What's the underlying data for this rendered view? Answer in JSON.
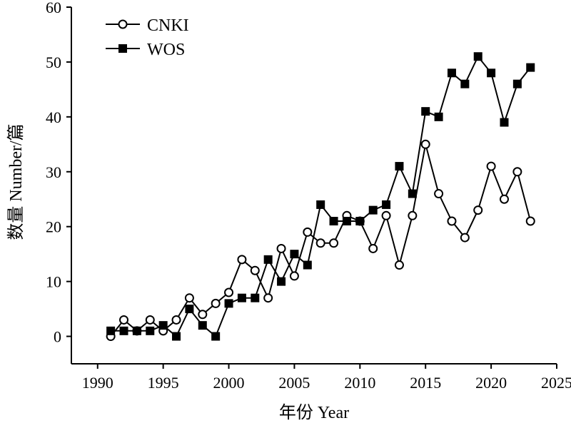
{
  "chart_data": {
    "type": "line",
    "title": "",
    "xlabel": "年份 Year",
    "ylabel": "数量 Number/篇",
    "xlim": [
      1988,
      2025
    ],
    "ylim": [
      -5,
      60
    ],
    "xticks": [
      1990,
      1995,
      2000,
      2005,
      2010,
      2015,
      2020,
      2025
    ],
    "yticks": [
      0,
      10,
      20,
      30,
      40,
      50,
      60
    ],
    "grid": false,
    "legend_position": "top-left",
    "x": [
      1991,
      1992,
      1993,
      1994,
      1995,
      1996,
      1997,
      1998,
      1999,
      2000,
      2001,
      2002,
      2003,
      2004,
      2005,
      2006,
      2007,
      2008,
      2009,
      2010,
      2011,
      2012,
      2013,
      2014,
      2015,
      2016,
      2017,
      2018,
      2019,
      2020,
      2021,
      2022,
      2023
    ],
    "series": [
      {
        "name": "CNKI",
        "marker": "open-circle",
        "color": "#000000",
        "values": [
          0,
          3,
          1,
          3,
          1,
          3,
          7,
          4,
          6,
          8,
          14,
          12,
          7,
          16,
          11,
          19,
          17,
          17,
          22,
          21,
          16,
          22,
          13,
          22,
          35,
          26,
          21,
          18,
          23,
          31,
          25,
          30,
          21
        ]
      },
      {
        "name": "WOS",
        "marker": "filled-square",
        "color": "#000000",
        "values": [
          1,
          1,
          1,
          1,
          2,
          0,
          5,
          2,
          0,
          6,
          7,
          7,
          14,
          10,
          15,
          13,
          24,
          21,
          21,
          21,
          23,
          24,
          31,
          26,
          41,
          40,
          48,
          46,
          51,
          48,
          39,
          46,
          49
        ]
      }
    ]
  }
}
